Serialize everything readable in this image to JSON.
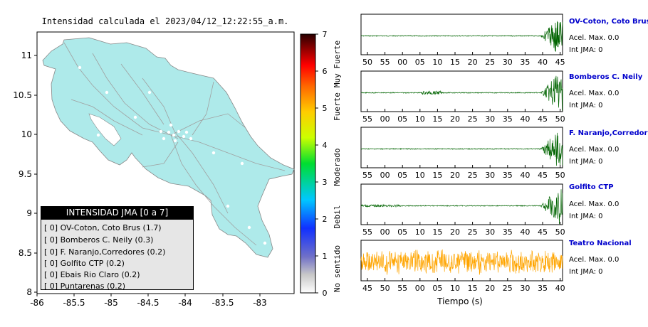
{
  "map": {
    "title": "Intensidad calculada el 2023/04/12_12:22:55_a.m.",
    "x_ticks": [
      "-86",
      "-85.5",
      "-85",
      "-84.5",
      "-84",
      "-83.5",
      "-83"
    ],
    "y_ticks": [
      "11",
      "10.5",
      "10",
      "9.5",
      "9",
      "8.5",
      "8"
    ],
    "land_color": "#aeeaea",
    "sea_color": "#ffffff"
  },
  "colorbar": {
    "ticks": [
      "7",
      "6",
      "5",
      "4",
      "3",
      "2",
      "1",
      "0"
    ],
    "labels": [
      "Muy Fuerte",
      "Fuerte",
      "Moderado",
      "Debil",
      "No sentido"
    ]
  },
  "legend": {
    "title": "INTENSIDAD JMA [0 a 7]",
    "rows": [
      "[ 0]  OV-Coton, Coto Brus (1.7)",
      "[ 0]  Bomberos C. Neily (0.3)",
      "[ 0]  F. Naranjo,Corredores (0.2)",
      "[ 0]  Golfito CTP (0.2)",
      "[ 0]  Ebais Rio Claro (0.2)",
      "[ 0]  Puntarenas (0.2)"
    ]
  },
  "stations": [
    {
      "name": "OV-Coton, Coto Brus",
      "acel": "Acel. Max. 0.0",
      "int": "Int JMA: 0",
      "color": "#006400",
      "ticks": [
        "50",
        "55",
        "00",
        "05",
        "10",
        "15",
        "20",
        "25",
        "30",
        "35",
        "40",
        "45"
      ]
    },
    {
      "name": "Bomberos C. Neily",
      "acel": "Acel. Max. 0.0",
      "int": "Int JMA: 0",
      "color": "#006400",
      "ticks": [
        "55",
        "00",
        "05",
        "10",
        "15",
        "20",
        "25",
        "30",
        "35",
        "40",
        "45",
        "50"
      ]
    },
    {
      "name": "F. Naranjo,Corredores",
      "acel": "Acel. Max. 0.0",
      "int": "Int JMA: 0",
      "color": "#006400",
      "ticks": [
        "55",
        "00",
        "05",
        "10",
        "15",
        "20",
        "25",
        "30",
        "35",
        "40",
        "45",
        "50"
      ]
    },
    {
      "name": "Golfito CTP",
      "acel": "Acel. Max. 0.0",
      "int": "Int JMA: 0",
      "color": "#006400",
      "ticks": [
        "55",
        "00",
        "05",
        "10",
        "15",
        "20",
        "25",
        "30",
        "35",
        "40",
        "45",
        "50"
      ]
    },
    {
      "name": "Teatro Nacional",
      "acel": "Acel. Max. 0.0",
      "int": "Int JMA: 0",
      "color": "#ffa500",
      "ticks": [
        "45",
        "50",
        "55",
        "00",
        "05",
        "10",
        "15",
        "20",
        "25",
        "30",
        "35",
        "40"
      ]
    }
  ],
  "xlabel": "Tiempo (s)",
  "chart_data": [
    {
      "type": "scatter",
      "title": "Intensidad calculada el 2023/04/12_12:22:55_a.m.",
      "xlim": [
        -86,
        -82.6
      ],
      "ylim": [
        8,
        11.3
      ],
      "x_ticks": [
        -86,
        -85.5,
        -85,
        -84.5,
        -84,
        -83.5,
        -83
      ],
      "y_ticks": [
        8,
        8.5,
        9,
        9.5,
        10,
        10.5,
        11
      ],
      "colorbar": {
        "range": [
          0,
          7
        ],
        "labels": [
          "Muy Fuerte",
          "Fuerte",
          "Moderado",
          "Debil",
          "No sentido"
        ]
      }
    },
    {
      "type": "line",
      "series": [
        {
          "name": "OV-Coton, Coto Brus",
          "peak_position": 0.97
        },
        {
          "name": "Bomberos C. Neily",
          "peak_position": 0.96
        },
        {
          "name": "F. Naranjo,Corredores",
          "peak_position": 0.98
        },
        {
          "name": "Golfito CTP",
          "peak_position": 0.96
        },
        {
          "name": "Teatro Nacional",
          "peak_position": 0.5
        }
      ]
    }
  ]
}
